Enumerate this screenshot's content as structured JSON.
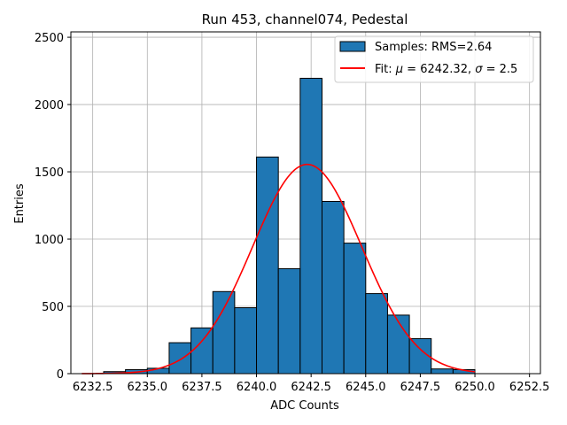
{
  "chart_data": {
    "type": "bar",
    "title": "Run 453, channel074, Pedestal",
    "xlabel": "ADC Counts",
    "ylabel": "Entries",
    "xlim": [
      6231.5,
      6253.0
    ],
    "ylim": [
      0,
      2540
    ],
    "xticks": [
      6232.5,
      6235.0,
      6237.5,
      6240.0,
      6242.5,
      6245.0,
      6247.5,
      6250.0,
      6252.5
    ],
    "xtick_labels": [
      "6232.5",
      "6235.0",
      "6237.5",
      "6240.0",
      "6242.5",
      "6245.0",
      "6247.5",
      "6250.0",
      "6252.5"
    ],
    "yticks": [
      0,
      500,
      1000,
      1500,
      2000,
      2500
    ],
    "ytick_labels": [
      "0",
      "500",
      "1000",
      "1500",
      "2000",
      "2500"
    ],
    "grid": true,
    "legend_position": "top-right",
    "histogram": {
      "name": "Samples: RMS=2.64",
      "color": "#1f77b4",
      "edgecolor": "#000000",
      "bin_edges": [
        6233.0,
        6234.0,
        6235.0,
        6236.0,
        6237.0,
        6238.0,
        6239.0,
        6240.0,
        6241.0,
        6242.0,
        6243.0,
        6244.0,
        6245.0,
        6246.0,
        6247.0,
        6248.0,
        6249.0,
        6250.0
      ],
      "counts": [
        15,
        30,
        40,
        230,
        340,
        610,
        490,
        1610,
        780,
        2195,
        1280,
        970,
        595,
        435,
        260,
        35,
        30
      ]
    },
    "fit": {
      "name_prefix": "Fit: ",
      "mu_symbol": "μ",
      "mu_text": " = 6242.32, ",
      "sigma_symbol": "σ",
      "sigma_text": " = 2.5",
      "color": "#ff0000",
      "mu": 6242.32,
      "sigma": 2.5,
      "amplitude": 1555,
      "x_range": [
        6232.0,
        6250.0
      ]
    }
  }
}
